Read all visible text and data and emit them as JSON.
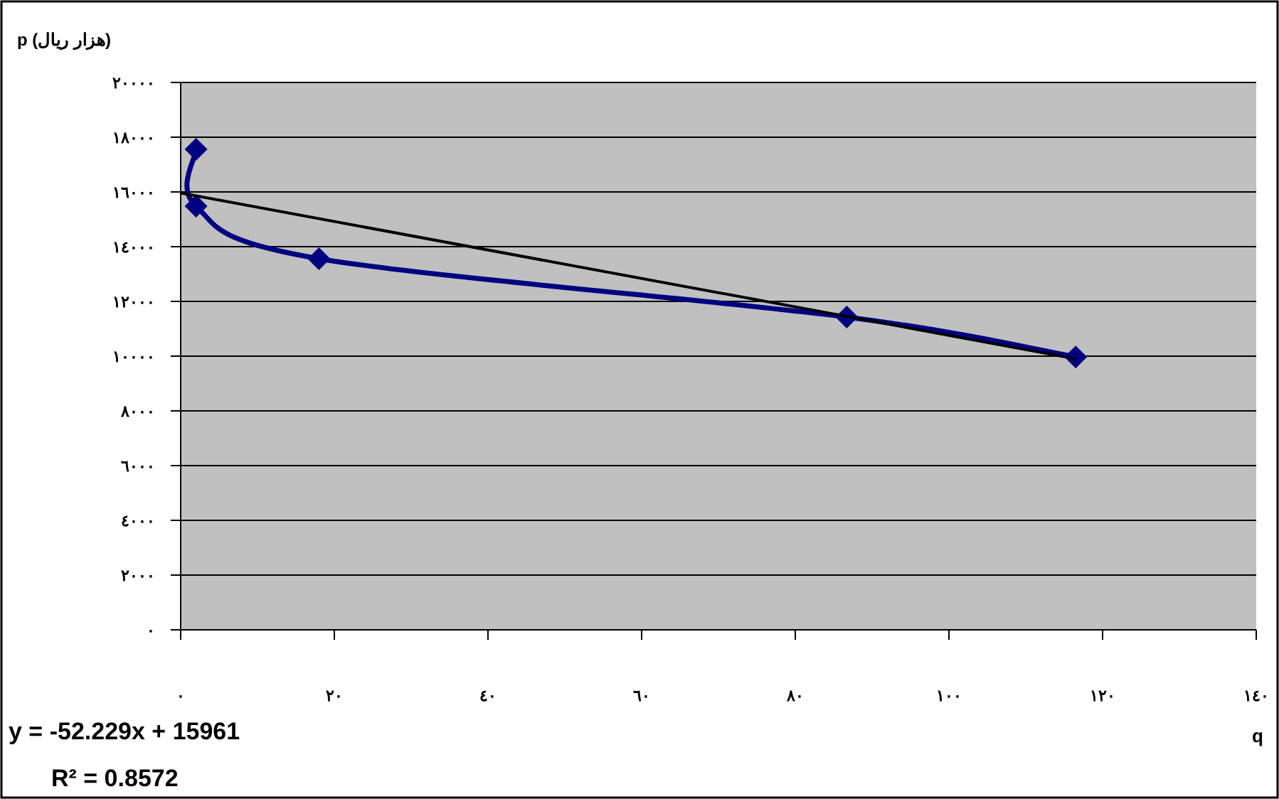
{
  "chart_data": {
    "type": "line",
    "xlabel": "q",
    "ylabel": "p (هزار ریال)",
    "annotations": [
      "y = -52.229x + 15961",
      "R² = 0.8572"
    ],
    "xlim": [
      0,
      140
    ],
    "ylim": [
      0,
      20000
    ],
    "xticks": [
      {
        "value": 0,
        "label": "٠"
      },
      {
        "value": 20,
        "label": "٢٠"
      },
      {
        "value": 40,
        "label": "٤٠"
      },
      {
        "value": 60,
        "label": "٦٠"
      },
      {
        "value": 80,
        "label": "٨٠"
      },
      {
        "value": 100,
        "label": "١٠٠"
      },
      {
        "value": 120,
        "label": "١٢٠"
      },
      {
        "value": 140,
        "label": "١٤٠"
      }
    ],
    "yticks": [
      {
        "value": 0,
        "label": "٠"
      },
      {
        "value": 2000,
        "label": "٢٠٠٠"
      },
      {
        "value": 4000,
        "label": "٤٠٠٠"
      },
      {
        "value": 6000,
        "label": "٦٠٠٠"
      },
      {
        "value": 8000,
        "label": "٨٠٠٠"
      },
      {
        "value": 10000,
        "label": "١٠٠٠٠"
      },
      {
        "value": 12000,
        "label": "١٢٠٠٠"
      },
      {
        "value": 14000,
        "label": "١٤٠٠٠"
      },
      {
        "value": 16000,
        "label": "١٦٠٠٠"
      },
      {
        "value": 18000,
        "label": "١٨٠٠٠"
      },
      {
        "value": 20000,
        "label": "٢٠٠٠٠"
      }
    ],
    "grid": "y",
    "series": [
      {
        "color": "#000080",
        "marker": "diamond",
        "x": [
          2,
          2,
          18,
          86.7,
          116.5
        ],
        "values": [
          17560,
          15480,
          13560,
          11430,
          9970
        ]
      },
      {
        "color": "#000000",
        "marker": "none",
        "x": [
          0,
          116.5
        ],
        "values": [
          15960,
          9900
        ]
      }
    ]
  }
}
